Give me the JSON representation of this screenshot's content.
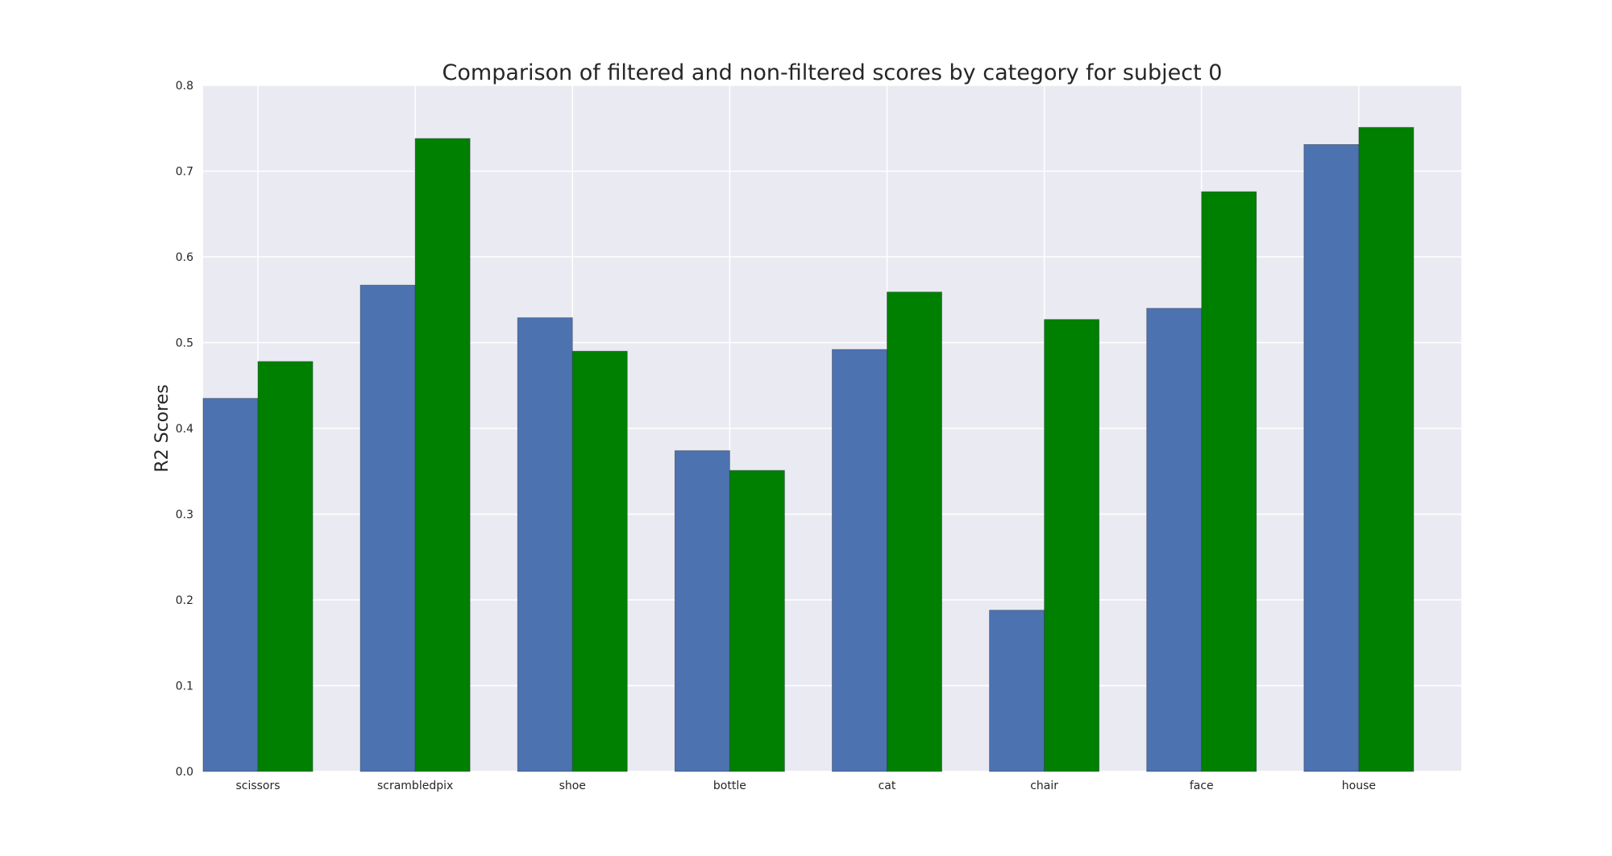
{
  "chart_data": {
    "type": "bar",
    "title": "Comparison of filtered and non-filtered scores by category for subject 0",
    "xlabel": "",
    "ylabel": "R2 Scores",
    "categories": [
      "scissors",
      "scrambledpix",
      "shoe",
      "bottle",
      "cat",
      "chair",
      "face",
      "house"
    ],
    "series": [
      {
        "values": [
          0.435,
          0.567,
          0.529,
          0.374,
          0.492,
          0.188,
          0.54,
          0.731
        ],
        "color": "#4C72B0"
      },
      {
        "values": [
          0.478,
          0.738,
          0.49,
          0.351,
          0.559,
          0.527,
          0.676,
          0.751
        ],
        "color": "#008000"
      }
    ],
    "ylim": [
      0,
      0.8
    ],
    "yticks": [
      "0.0",
      "0.1",
      "0.2",
      "0.3",
      "0.4",
      "0.5",
      "0.6",
      "0.7",
      "0.8"
    ],
    "grid": true,
    "legend": "none",
    "plot_background": "#EAEAF2",
    "grid_color": "#FFFFFF"
  }
}
